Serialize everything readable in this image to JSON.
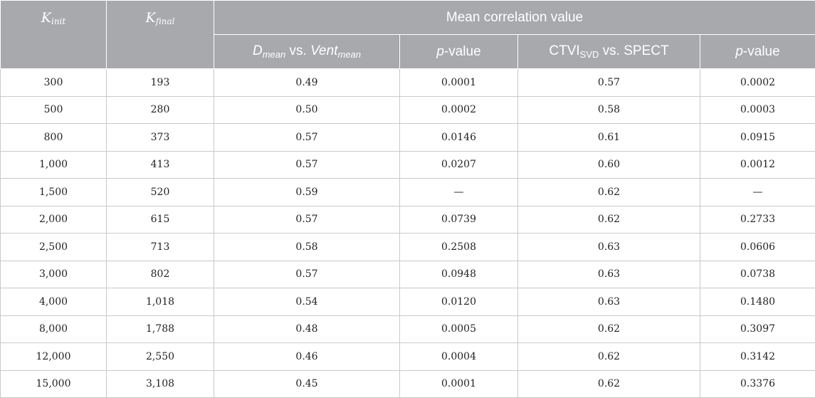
{
  "header": {
    "k_init_main": "K",
    "k_init_sub": "init",
    "k_final_main": "K",
    "k_final_sub": "final",
    "group_title": "Mean correlation value",
    "col3_main": "D",
    "col3_sub1": "mean",
    "col3_mid": " vs. ",
    "col3_main2": "Vent",
    "col3_sub2": "mean",
    "col4_p": "p",
    "col4_rest": "-value",
    "col5_main": "CTVI",
    "col5_sub": "SVD",
    "col5_rest": " vs. SPECT",
    "col6_p": "p",
    "col6_rest": "-value"
  },
  "rows": [
    {
      "k_init": "300",
      "k_final": "193",
      "d_vent": "0.49",
      "p1": "0.0001",
      "ctvi": "0.57",
      "p2": "0.0002"
    },
    {
      "k_init": "500",
      "k_final": "280",
      "d_vent": "0.50",
      "p1": "0.0002",
      "ctvi": "0.58",
      "p2": "0.0003"
    },
    {
      "k_init": "800",
      "k_final": "373",
      "d_vent": "0.57",
      "p1": "0.0146",
      "ctvi": "0.61",
      "p2": "0.0915"
    },
    {
      "k_init": "1,000",
      "k_final": "413",
      "d_vent": "0.57",
      "p1": "0.0207",
      "ctvi": "0.60",
      "p2": "0.0012"
    },
    {
      "k_init": "1,500",
      "k_final": "520",
      "d_vent": "0.59",
      "p1": "—",
      "ctvi": "0.62",
      "p2": "—"
    },
    {
      "k_init": "2,000",
      "k_final": "615",
      "d_vent": "0.57",
      "p1": "0.0739",
      "ctvi": "0.62",
      "p2": "0.2733"
    },
    {
      "k_init": "2,500",
      "k_final": "713",
      "d_vent": "0.58",
      "p1": "0.2508",
      "ctvi": "0.63",
      "p2": "0.0606"
    },
    {
      "k_init": "3,000",
      "k_final": "802",
      "d_vent": "0.57",
      "p1": "0.0948",
      "ctvi": "0.63",
      "p2": "0.0738"
    },
    {
      "k_init": "4,000",
      "k_final": "1,018",
      "d_vent": "0.54",
      "p1": "0.0120",
      "ctvi": "0.63",
      "p2": "0.1480"
    },
    {
      "k_init": "8,000",
      "k_final": "1,788",
      "d_vent": "0.48",
      "p1": "0.0005",
      "ctvi": "0.62",
      "p2": "0.3097"
    },
    {
      "k_init": "12,000",
      "k_final": "2,550",
      "d_vent": "0.46",
      "p1": "0.0004",
      "ctvi": "0.62",
      "p2": "0.3142"
    },
    {
      "k_init": "15,000",
      "k_final": "3,108",
      "d_vent": "0.45",
      "p1": "0.0001",
      "ctvi": "0.62",
      "p2": "0.3376"
    }
  ]
}
